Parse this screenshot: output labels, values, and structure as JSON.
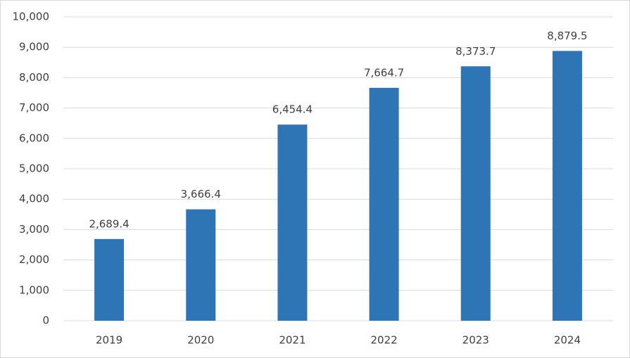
{
  "chart_data": {
    "type": "bar",
    "categories": [
      "2019",
      "2020",
      "2021",
      "2022",
      "2023",
      "2024"
    ],
    "values": [
      2689.4,
      3666.4,
      6454.4,
      7664.7,
      8373.7,
      8879.5
    ],
    "value_labels": [
      "2,689.4",
      "3,666.4",
      "6,454.4",
      "7,664.7",
      "8,373.7",
      "8,879.5"
    ],
    "color": "#2e75b6",
    "ylim": [
      0,
      10000
    ],
    "yticks": [
      0,
      {
        "value": 1000,
        "label": "1,000"
      },
      {
        "value": 2000,
        "label": "2,000"
      },
      {
        "value": 3000,
        "label": "3,000"
      },
      {
        "value": 4000,
        "label": "4,000"
      },
      {
        "value": 5000,
        "label": "5,000"
      },
      {
        "value": 6000,
        "label": "6,000"
      },
      {
        "value": 7000,
        "label": "7,000"
      },
      {
        "value": 8000,
        "label": "8,000"
      },
      {
        "value": 9000,
        "label": "9,000"
      },
      {
        "value": 10000,
        "label": "10,000"
      }
    ],
    "grid": true
  }
}
